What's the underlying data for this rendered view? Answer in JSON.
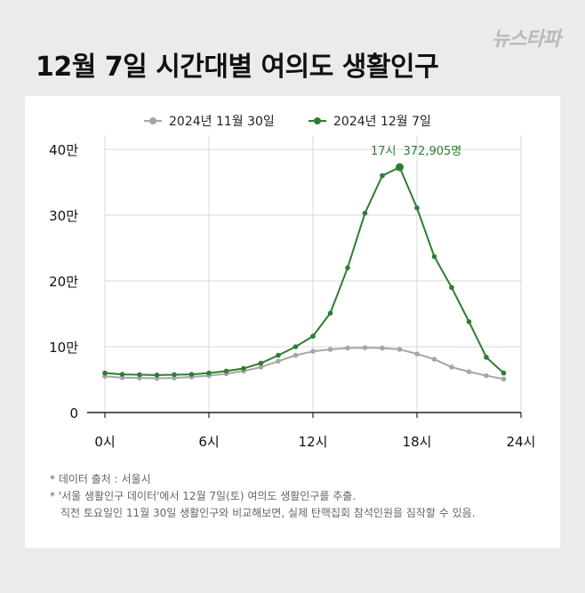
{
  "title": "12월 7일 시간대별 여의도 생활인구",
  "logo": "뉴스타파",
  "notes": [
    "* 데이터 출처 : 서울시",
    "* '서울 생활인구 데이터'에서 12월 7일(토) 여의도 생활인구를 추출.",
    "직전 토요일인 11월 30일 생활인구와 비교해보면, 실제 탄핵집회 참석인원을 짐작할 수 있음."
  ],
  "chart_data": {
    "type": "line",
    "x": [
      0,
      1,
      2,
      3,
      4,
      5,
      6,
      7,
      8,
      9,
      10,
      11,
      12,
      13,
      14,
      15,
      16,
      17,
      18,
      19,
      20,
      21,
      22,
      23
    ],
    "xticks": [
      0,
      6,
      12,
      18,
      24
    ],
    "xtick_labels": [
      "0시",
      "6시",
      "12시",
      "18시",
      "24시"
    ],
    "xlim": [
      0,
      24
    ],
    "yticks": [
      0,
      100000,
      200000,
      300000,
      400000
    ],
    "ytick_labels": [
      "0",
      "10만",
      "20만",
      "30만",
      "40만"
    ],
    "ylim": [
      0,
      400000
    ],
    "grid": true,
    "legend_position": "top-center",
    "series": [
      {
        "name": "2024년 11월 30일",
        "color": "#a6a6a6",
        "values": [
          55000,
          53000,
          52500,
          52000,
          52500,
          54000,
          56000,
          59000,
          63000,
          69000,
          78000,
          87000,
          93000,
          96000,
          98000,
          98500,
          98000,
          96000,
          89000,
          81000,
          69000,
          62000,
          56000,
          51000
        ]
      },
      {
        "name": "2024년 12월 7일",
        "color": "#2e7d32",
        "values": [
          60000,
          58000,
          57500,
          57000,
          57500,
          58000,
          60000,
          63000,
          67000,
          75000,
          87000,
          100000,
          116000,
          151000,
          220000,
          303000,
          360000,
          372905,
          311000,
          237000,
          190000,
          138000,
          84000,
          60000
        ]
      }
    ],
    "annotation": {
      "series": 1,
      "x": 17,
      "label_time": "17시",
      "label_value": "372,905명"
    }
  }
}
